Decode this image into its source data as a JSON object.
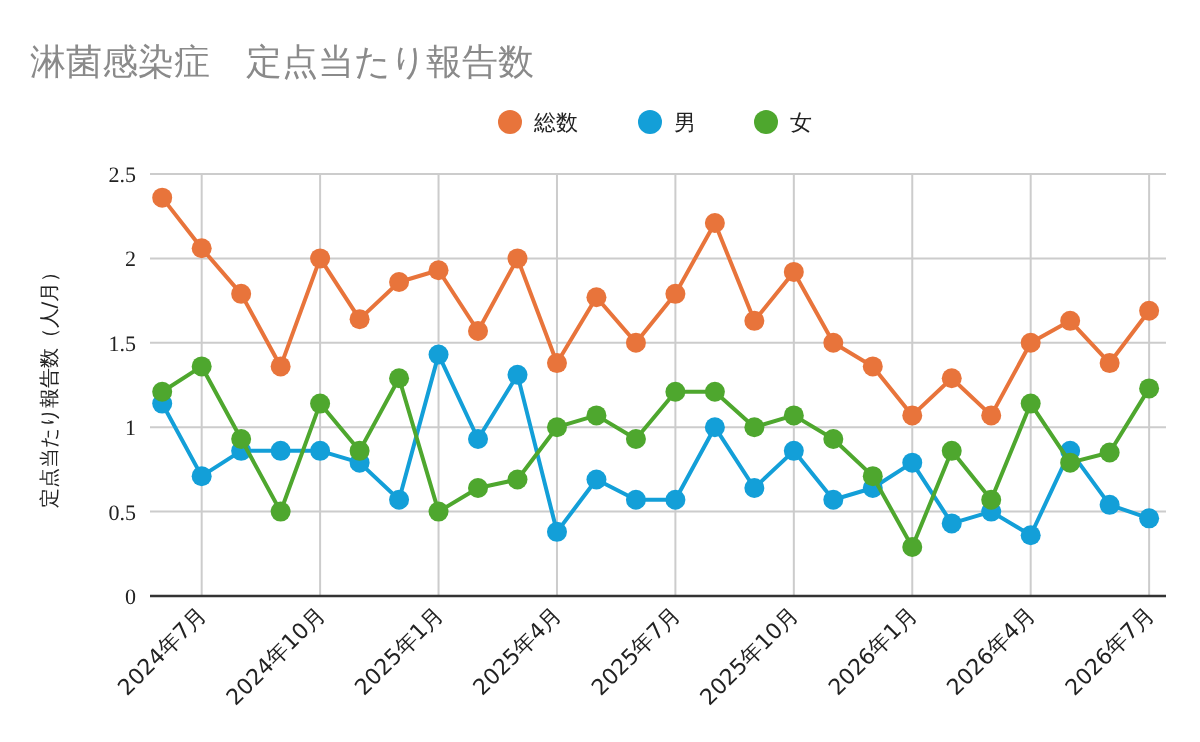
{
  "chart_data": {
    "type": "line",
    "title": "淋菌感染症　定点当たり報告数",
    "ylabel": "定点当たり報告数（人/月）",
    "x": [
      "2024-06",
      "2024-07",
      "2024-08",
      "2024-09",
      "2024-10",
      "2024-11",
      "2024-12",
      "2025-01",
      "2025-02",
      "2025-03",
      "2025-04",
      "2025-05",
      "2025-06",
      "2025-07",
      "2025-08",
      "2025-09",
      "2025-10",
      "2025-11",
      "2025-12",
      "2026-01",
      "2026-02",
      "2026-03",
      "2026-04",
      "2026-05",
      "2026-06",
      "2026-07"
    ],
    "series": [
      {
        "name": "総数",
        "color": "#e8743b",
        "values": [
          2.36,
          2.06,
          1.79,
          1.36,
          2.0,
          1.64,
          1.86,
          1.93,
          1.57,
          2.0,
          1.38,
          1.77,
          1.5,
          1.79,
          2.21,
          1.63,
          1.92,
          1.5,
          1.36,
          1.07,
          1.29,
          1.07,
          1.5,
          1.63,
          1.38,
          1.69
        ]
      },
      {
        "name": "男",
        "color": "#139fd8",
        "values": [
          1.14,
          0.71,
          0.86,
          0.86,
          0.86,
          0.79,
          0.57,
          1.43,
          0.93,
          1.31,
          0.38,
          0.69,
          0.57,
          0.57,
          1.0,
          0.64,
          0.86,
          0.57,
          0.64,
          0.79,
          0.43,
          0.5,
          0.36,
          0.86,
          0.54,
          0.46
        ]
      },
      {
        "name": "女",
        "color": "#4ea72e",
        "values": [
          1.21,
          1.36,
          0.93,
          0.5,
          1.14,
          0.86,
          1.29,
          0.5,
          0.64,
          0.69,
          1.0,
          1.07,
          0.93,
          1.21,
          1.21,
          1.0,
          1.07,
          0.93,
          0.71,
          0.29,
          0.86,
          0.57,
          1.14,
          0.79,
          0.85,
          1.23
        ]
      }
    ],
    "xlim": [
      "2024-05-22",
      "2026-07-14"
    ],
    "xticks": [
      {
        "value": "2024-07",
        "label": "2024年7月"
      },
      {
        "value": "2024-10",
        "label": "2024年10月"
      },
      {
        "value": "2025-01",
        "label": "2025年1月"
      },
      {
        "value": "2025-04",
        "label": "2025年4月"
      },
      {
        "value": "2025-07",
        "label": "2025年7月"
      },
      {
        "value": "2025-10",
        "label": "2025年10月"
      },
      {
        "value": "2026-01",
        "label": "2026年1月"
      },
      {
        "value": "2026-04",
        "label": "2026年4月"
      },
      {
        "value": "2026-07",
        "label": "2026年7月"
      }
    ],
    "ylim": [
      0,
      2.5
    ],
    "yticks": [
      0,
      0.5,
      1,
      1.5,
      2,
      2.5
    ],
    "grid": true,
    "legend": "top",
    "marker": "circle",
    "line_style": "solid"
  }
}
